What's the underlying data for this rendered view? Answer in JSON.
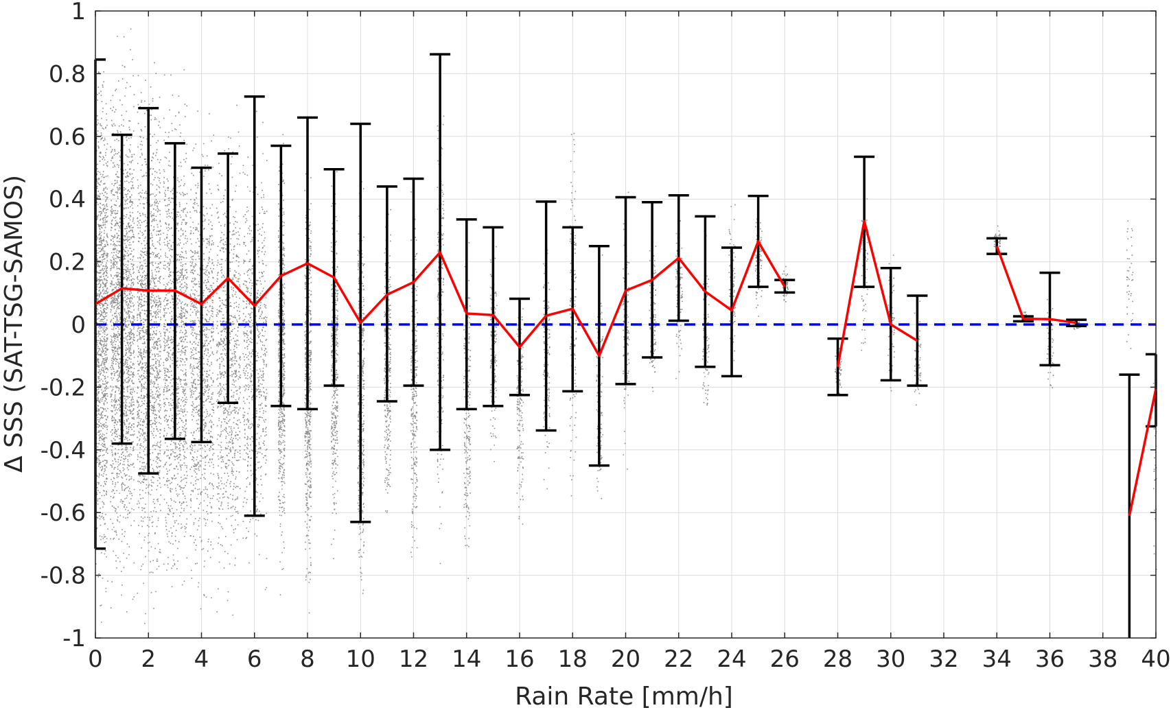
{
  "chart_data": {
    "type": "scatter",
    "xlabel": "Rain Rate [mm/h]",
    "ylabel": "Δ SSS (SAT-TSG-SAMOS)",
    "xlim": [
      0,
      40
    ],
    "ylim": [
      -1,
      1
    ],
    "xticks": [
      0,
      2,
      4,
      6,
      8,
      10,
      12,
      14,
      16,
      18,
      20,
      22,
      24,
      26,
      28,
      30,
      32,
      34,
      36,
      38,
      40
    ],
    "yticks": [
      -1,
      -0.8,
      -0.6,
      -0.4,
      -0.2,
      0,
      0.2,
      0.4,
      0.6,
      0.8,
      1
    ],
    "ytick_labels": [
      "-1",
      "-0.8",
      "-0.6",
      "-0.4",
      "-0.2",
      "0",
      "0.2",
      "0.4",
      "0.6",
      "0.8",
      "1"
    ],
    "grid": true,
    "colors": {
      "scatter": "#8c8c8c",
      "mean_line": "#ff0000",
      "error_bars": "#000000",
      "zero_line": "#0000ff",
      "grid": "#dcdcdc",
      "axes": "#262626"
    },
    "scatter_cloud": [
      {
        "x": 0,
        "ylo": -1.0,
        "yhi": 1.0,
        "density": 1.0
      },
      {
        "x": 1,
        "ylo": -1.0,
        "yhi": 1.0,
        "density": 0.8
      },
      {
        "x": 2,
        "ylo": -1.0,
        "yhi": 0.95,
        "density": 0.65
      },
      {
        "x": 3,
        "ylo": -1.0,
        "yhi": 0.9,
        "density": 0.55
      },
      {
        "x": 4,
        "ylo": -1.0,
        "yhi": 0.8,
        "density": 0.45
      },
      {
        "x": 5,
        "ylo": -1.0,
        "yhi": 0.75,
        "density": 0.38
      },
      {
        "x": 6,
        "ylo": -0.95,
        "yhi": 0.75,
        "density": 0.32
      },
      {
        "x": 7,
        "ylo": -0.9,
        "yhi": 0.7,
        "density": 0.28
      },
      {
        "x": 8,
        "ylo": -1.0,
        "yhi": 0.66,
        "density": 0.25
      },
      {
        "x": 9,
        "ylo": -0.8,
        "yhi": 0.55,
        "density": 0.2
      },
      {
        "x": 10,
        "ylo": -1.0,
        "yhi": 0.6,
        "density": 0.18
      },
      {
        "x": 11,
        "ylo": -0.75,
        "yhi": 0.5,
        "density": 0.15
      },
      {
        "x": 12,
        "ylo": -0.9,
        "yhi": 0.5,
        "density": 0.13
      },
      {
        "x": 13,
        "ylo": -0.85,
        "yhi": 0.85,
        "density": 0.12
      },
      {
        "x": 14,
        "ylo": -0.9,
        "yhi": 0.35,
        "density": 0.1
      },
      {
        "x": 15,
        "ylo": -0.5,
        "yhi": 0.35,
        "density": 0.09
      },
      {
        "x": 16,
        "ylo": -0.7,
        "yhi": 0.2,
        "density": 0.08
      },
      {
        "x": 17,
        "ylo": -0.6,
        "yhi": 0.4,
        "density": 0.07
      },
      {
        "x": 18,
        "ylo": -0.75,
        "yhi": 0.8,
        "density": 0.07
      },
      {
        "x": 19,
        "ylo": -0.7,
        "yhi": 0.3,
        "density": 0.06
      },
      {
        "x": 20,
        "ylo": -0.5,
        "yhi": 0.45,
        "density": 0.06
      },
      {
        "x": 21,
        "ylo": -0.3,
        "yhi": 0.35,
        "density": 0.05
      },
      {
        "x": 22,
        "ylo": -0.2,
        "yhi": 0.4,
        "density": 0.05
      },
      {
        "x": 23,
        "ylo": -0.4,
        "yhi": 0.35,
        "density": 0.04
      },
      {
        "x": 24,
        "ylo": -0.2,
        "yhi": 0.45,
        "density": 0.04
      },
      {
        "x": 25,
        "ylo": 0.0,
        "yhi": 0.4,
        "density": 0.04
      },
      {
        "x": 26,
        "ylo": 0.05,
        "yhi": 0.2,
        "density": 0.03
      },
      {
        "x": 28,
        "ylo": -0.25,
        "yhi": 0.0,
        "density": 0.03
      },
      {
        "x": 29,
        "ylo": -0.2,
        "yhi": 0.55,
        "density": 0.03
      },
      {
        "x": 30,
        "ylo": -0.35,
        "yhi": 0.3,
        "density": 0.03
      },
      {
        "x": 31,
        "ylo": -0.3,
        "yhi": 0.1,
        "density": 0.03
      },
      {
        "x": 34,
        "ylo": 0.22,
        "yhi": 0.32,
        "density": 0.02
      },
      {
        "x": 35,
        "ylo": 0.0,
        "yhi": 0.05,
        "density": 0.02
      },
      {
        "x": 36,
        "ylo": -0.3,
        "yhi": 0.2,
        "density": 0.02
      },
      {
        "x": 37,
        "ylo": -0.02,
        "yhi": 0.02,
        "density": 0.02
      },
      {
        "x": 39,
        "ylo": -0.2,
        "yhi": 0.45,
        "density": 0.02
      },
      {
        "x": 40,
        "ylo": -0.85,
        "yhi": -0.1,
        "density": 0.02
      }
    ],
    "series": [
      {
        "kind": "mean_with_error_bars",
        "segments": [
          [
            {
              "x": 0,
              "y": 0.065,
              "lo": -0.715,
              "hi": 0.845
            },
            {
              "x": 1,
              "y": 0.115,
              "lo": -0.38,
              "hi": 0.605
            },
            {
              "x": 2,
              "y": 0.108,
              "lo": -0.475,
              "hi": 0.69
            },
            {
              "x": 3,
              "y": 0.108,
              "lo": -0.365,
              "hi": 0.578
            },
            {
              "x": 4,
              "y": 0.065,
              "lo": -0.375,
              "hi": 0.5
            },
            {
              "x": 5,
              "y": 0.148,
              "lo": -0.25,
              "hi": 0.545
            },
            {
              "x": 6,
              "y": 0.06,
              "lo": -0.61,
              "hi": 0.727
            },
            {
              "x": 7,
              "y": 0.155,
              "lo": -0.26,
              "hi": 0.57
            },
            {
              "x": 8,
              "y": 0.195,
              "lo": -0.27,
              "hi": 0.66
            },
            {
              "x": 9,
              "y": 0.15,
              "lo": -0.195,
              "hi": 0.495
            },
            {
              "x": 10,
              "y": 0.005,
              "lo": -0.63,
              "hi": 0.64
            },
            {
              "x": 11,
              "y": 0.095,
              "lo": -0.245,
              "hi": 0.44
            },
            {
              "x": 12,
              "y": 0.135,
              "lo": -0.195,
              "hi": 0.465
            },
            {
              "x": 13,
              "y": 0.23,
              "lo": -0.4,
              "hi": 0.862
            },
            {
              "x": 14,
              "y": 0.035,
              "lo": -0.27,
              "hi": 0.335
            },
            {
              "x": 15,
              "y": 0.03,
              "lo": -0.26,
              "hi": 0.31
            },
            {
              "x": 16,
              "y": -0.072,
              "lo": -0.225,
              "hi": 0.082
            },
            {
              "x": 17,
              "y": 0.028,
              "lo": -0.338,
              "hi": 0.392
            },
            {
              "x": 18,
              "y": 0.05,
              "lo": -0.213,
              "hi": 0.31
            },
            {
              "x": 19,
              "y": -0.1,
              "lo": -0.45,
              "hi": 0.25
            },
            {
              "x": 20,
              "y": 0.108,
              "lo": -0.19,
              "hi": 0.406
            },
            {
              "x": 21,
              "y": 0.142,
              "lo": -0.105,
              "hi": 0.39
            },
            {
              "x": 22,
              "y": 0.212,
              "lo": 0.012,
              "hi": 0.412
            },
            {
              "x": 23,
              "y": 0.105,
              "lo": -0.135,
              "hi": 0.345
            },
            {
              "x": 24,
              "y": 0.045,
              "lo": -0.165,
              "hi": 0.245
            },
            {
              "x": 25,
              "y": 0.265,
              "lo": 0.12,
              "hi": 0.41
            },
            {
              "x": 26,
              "y": 0.12,
              "lo": 0.102,
              "hi": 0.142
            }
          ],
          [
            {
              "x": 28,
              "y": -0.135,
              "lo": -0.225,
              "hi": -0.045
            },
            {
              "x": 29,
              "y": 0.33,
              "lo": 0.12,
              "hi": 0.535
            },
            {
              "x": 30,
              "y": 0.0,
              "lo": -0.178,
              "hi": 0.18
            },
            {
              "x": 31,
              "y": -0.052,
              "lo": -0.195,
              "hi": 0.092
            }
          ],
          [
            {
              "x": 34,
              "y": 0.25,
              "lo": 0.225,
              "hi": 0.275
            },
            {
              "x": 35,
              "y": 0.018,
              "lo": 0.01,
              "hi": 0.026
            },
            {
              "x": 36,
              "y": 0.017,
              "lo": -0.13,
              "hi": 0.165
            },
            {
              "x": 37,
              "y": 0.005,
              "lo": -0.005,
              "hi": 0.015
            }
          ],
          [
            {
              "x": 39,
              "y": -0.61,
              "lo": -1.06,
              "hi": -0.16
            },
            {
              "x": 40,
              "y": -0.205,
              "lo": -0.325,
              "hi": -0.095
            }
          ]
        ]
      },
      {
        "kind": "zero_reference",
        "y": 0
      }
    ]
  }
}
